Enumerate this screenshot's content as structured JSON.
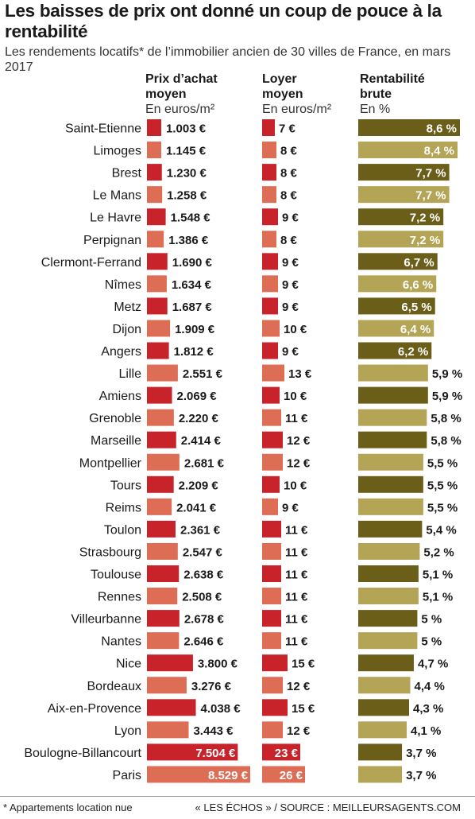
{
  "title": "Les baisses de prix ont donné un coup de pouce à la rentabilité",
  "subtitle": "Les rendements locatifs* de l’immobilier ancien de 30 villes de France, en mars 2017",
  "columns": {
    "price": {
      "heading_line1": "Prix d’achat",
      "heading_line2": "moyen",
      "unit": "En euros/m²"
    },
    "rent": {
      "heading_line1": "Loyer",
      "heading_line2": "moyen",
      "unit": "En euros/m²"
    },
    "yield": {
      "heading_line1": "Rentabilité",
      "heading_line2": "brute",
      "unit": "En %"
    }
  },
  "footnote": "* Appartements location nue",
  "source": "« LES ÉCHOS » / SOURCE : MEILLEURSAGENTS.COM",
  "colors": {
    "red": "#c8222b",
    "salmon": "#dd6d55",
    "olive_dark": "#6b5e19",
    "olive_light": "#b4a455"
  },
  "chart_data": {
    "type": "bar",
    "categories": [
      "Saint-Etienne",
      "Limoges",
      "Brest",
      "Le Mans",
      "Le Havre",
      "Perpignan",
      "Clermont-Ferrand",
      "Nîmes",
      "Metz",
      "Dijon",
      "Angers",
      "Lille",
      "Amiens",
      "Grenoble",
      "Marseille",
      "Montpellier",
      "Tours",
      "Reims",
      "Toulon",
      "Strasbourg",
      "Toulouse",
      "Rennes",
      "Villeurbanne",
      "Nantes",
      "Nice",
      "Bordeaux",
      "Aix-en-Provence",
      "Lyon",
      "Boulogne-Billancourt",
      "Paris"
    ],
    "series": [
      {
        "name": "Prix d’achat moyen",
        "values": [
          1003,
          1145,
          1230,
          1258,
          1548,
          1386,
          1690,
          1634,
          1687,
          1909,
          1812,
          2551,
          2069,
          2220,
          2414,
          2681,
          2209,
          2041,
          2361,
          2547,
          2638,
          2508,
          2678,
          2646,
          3800,
          3276,
          4038,
          3443,
          7504,
          8529
        ],
        "labels": [
          "1.003 €",
          "1.145 €",
          "1.230 €",
          "1.258 €",
          "1.548 €",
          "1.386 €",
          "1.690 €",
          "1.634 €",
          "1.687 €",
          "1.909 €",
          "1.812 €",
          "2.551 €",
          "2.069 €",
          "2.220 €",
          "2.414 €",
          "2.681 €",
          "2.209 €",
          "2.041 €",
          "2.361 €",
          "2.547 €",
          "2.638 €",
          "2.508 €",
          "2.678 €",
          "2.646 €",
          "3.800 €",
          "3.276 €",
          "4.038 €",
          "3.443 €",
          "7.504 €",
          "8.529 €"
        ]
      },
      {
        "name": "Loyer moyen",
        "values": [
          7,
          8,
          8,
          8,
          9,
          8,
          9,
          9,
          9,
          10,
          9,
          13,
          10,
          11,
          12,
          12,
          10,
          9,
          11,
          11,
          11,
          11,
          11,
          11,
          15,
          12,
          15,
          12,
          23,
          26
        ],
        "labels": [
          "7 €",
          "8 €",
          "8 €",
          "8 €",
          "9 €",
          "8 €",
          "9 €",
          "9 €",
          "9 €",
          "10 €",
          "9 €",
          "13 €",
          "10 €",
          "11 €",
          "12 €",
          "12 €",
          "10 €",
          "9 €",
          "11 €",
          "11 €",
          "11 €",
          "11 €",
          "11 €",
          "11 €",
          "15 €",
          "12 €",
          "15 €",
          "12 €",
          "23 €",
          "26 €"
        ]
      },
      {
        "name": "Rentabilité brute",
        "values": [
          8.6,
          8.4,
          7.7,
          7.7,
          7.2,
          7.2,
          6.7,
          6.6,
          6.5,
          6.4,
          6.2,
          5.9,
          5.9,
          5.8,
          5.8,
          5.5,
          5.5,
          5.5,
          5.4,
          5.2,
          5.1,
          5.1,
          5,
          5,
          4.7,
          4.4,
          4.3,
          4.1,
          3.7,
          3.7
        ],
        "labels": [
          "8,6 %",
          "8,4 %",
          "7,7 %",
          "7,7 %",
          "7,2 %",
          "7,2 %",
          "6,7 %",
          "6,6 %",
          "6,5 %",
          "6,4 %",
          "6,2 %",
          "5,9 %",
          "5,9 %",
          "5,8 %",
          "5,8 %",
          "5,5 %",
          "5,5 %",
          "5,5 %",
          "5,4 %",
          "5,2 %",
          "5,1 %",
          "5,1 %",
          "5 %",
          "5 %",
          "4,7 %",
          "4,4 %",
          "4,3 %",
          "4,1 %",
          "3,7 %",
          "3,7 %"
        ]
      }
    ]
  }
}
